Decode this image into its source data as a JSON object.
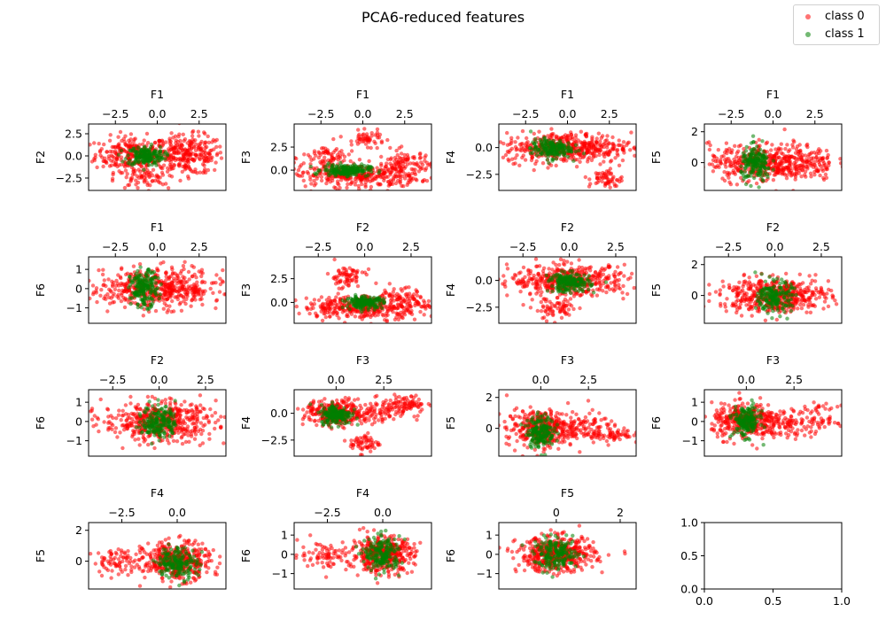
{
  "figure": {
    "title": "PCA6-reduced features",
    "legend": [
      {
        "label": "class 0",
        "color": "#ff0000"
      },
      {
        "label": "class 1",
        "color": "#008000"
      }
    ]
  },
  "chart_data": [
    {
      "type": "scatter",
      "title": "",
      "xlabel": "F1",
      "ylabel": "F2",
      "xticks": [
        -2.5,
        0.0,
        2.5
      ],
      "yticks": [
        -2.5,
        0.0,
        2.5
      ],
      "xlim": [
        -4.1,
        4.1
      ],
      "ylim": [
        -3.9,
        3.6
      ],
      "series": [
        {
          "name": "class 0",
          "color": "#ff0000",
          "clusters": [
            {
              "cx": -1.5,
              "cy": 0.2,
              "sx": 1.1,
              "sy": 1.0,
              "n": 260
            },
            {
              "cx": 1.8,
              "cy": 0.1,
              "sx": 1.1,
              "sy": 1.1,
              "n": 280
            },
            {
              "cx": -1.0,
              "cy": -2.6,
              "sx": 0.8,
              "sy": 0.6,
              "n": 60
            }
          ]
        },
        {
          "name": "class 1",
          "color": "#008000",
          "clusters": [
            {
              "cx": -0.7,
              "cy": 0.0,
              "sx": 0.55,
              "sy": 0.55,
              "n": 180
            }
          ]
        }
      ]
    },
    {
      "type": "scatter",
      "title": "",
      "xlabel": "F1",
      "ylabel": "F3",
      "xticks": [
        -2.5,
        0.0,
        2.5
      ],
      "yticks": [
        0.0,
        2.5
      ],
      "xlim": [
        -4.1,
        4.1
      ],
      "ylim": [
        -2.2,
        5.0
      ],
      "series": [
        {
          "name": "class 0",
          "color": "#ff0000",
          "clusters": [
            {
              "cx": -0.5,
              "cy": -0.6,
              "sx": 1.9,
              "sy": 0.6,
              "n": 320
            },
            {
              "cx": 2.5,
              "cy": 0.4,
              "sx": 0.8,
              "sy": 0.9,
              "n": 120
            },
            {
              "cx": 0.3,
              "cy": 3.4,
              "sx": 0.5,
              "sy": 0.4,
              "n": 50
            },
            {
              "cx": -2.0,
              "cy": 1.3,
              "sx": 0.8,
              "sy": 0.8,
              "n": 80
            }
          ]
        },
        {
          "name": "class 1",
          "color": "#008000",
          "clusters": [
            {
              "cx": -1.0,
              "cy": 0.0,
              "sx": 0.7,
              "sy": 0.3,
              "n": 180
            }
          ]
        }
      ]
    },
    {
      "type": "scatter",
      "title": "",
      "xlabel": "F1",
      "ylabel": "F4",
      "xticks": [
        -2.5,
        0.0,
        2.5
      ],
      "yticks": [
        -2.5,
        0.0
      ],
      "xlim": [
        -4.1,
        4.1
      ],
      "ylim": [
        -4.0,
        2.2
      ],
      "series": [
        {
          "name": "class 0",
          "color": "#ff0000",
          "clusters": [
            {
              "cx": 0.0,
              "cy": 0.0,
              "sx": 1.9,
              "sy": 0.7,
              "n": 480
            },
            {
              "cx": 2.3,
              "cy": -2.9,
              "sx": 0.5,
              "sy": 0.45,
              "n": 60
            }
          ]
        },
        {
          "name": "class 1",
          "color": "#008000",
          "clusters": [
            {
              "cx": -1.0,
              "cy": -0.1,
              "sx": 0.6,
              "sy": 0.45,
              "n": 180
            }
          ]
        }
      ]
    },
    {
      "type": "scatter",
      "title": "",
      "xlabel": "F1",
      "ylabel": "F5",
      "xticks": [
        -2.5,
        0.0,
        2.5
      ],
      "yticks": [
        0,
        2
      ],
      "xlim": [
        -4.1,
        4.1
      ],
      "ylim": [
        -1.8,
        2.5
      ],
      "series": [
        {
          "name": "class 0",
          "color": "#ff0000",
          "clusters": [
            {
              "cx": 0.0,
              "cy": 0.0,
              "sx": 1.9,
              "sy": 0.6,
              "n": 520
            }
          ]
        },
        {
          "name": "class 1",
          "color": "#008000",
          "clusters": [
            {
              "cx": -1.0,
              "cy": -0.1,
              "sx": 0.45,
              "sy": 0.55,
              "n": 180
            }
          ]
        }
      ]
    },
    {
      "type": "scatter",
      "title": "",
      "xlabel": "F1",
      "ylabel": "F6",
      "xticks": [
        -2.5,
        0.0,
        2.5
      ],
      "yticks": [
        -1,
        0,
        1
      ],
      "xlim": [
        -4.1,
        4.1
      ],
      "ylim": [
        -1.8,
        1.65
      ],
      "series": [
        {
          "name": "class 0",
          "color": "#ff0000",
          "clusters": [
            {
              "cx": 0.0,
              "cy": 0.0,
              "sx": 2.0,
              "sy": 0.5,
              "n": 520
            }
          ]
        },
        {
          "name": "class 1",
          "color": "#008000",
          "clusters": [
            {
              "cx": -0.8,
              "cy": 0.0,
              "sx": 0.4,
              "sy": 0.45,
              "n": 180
            }
          ]
        }
      ]
    },
    {
      "type": "scatter",
      "title": "",
      "xlabel": "F2",
      "ylabel": "F3",
      "xticks": [
        -2.5,
        0.0,
        2.5
      ],
      "yticks": [
        0.0,
        2.5
      ],
      "xlim": [
        -3.8,
        3.6
      ],
      "ylim": [
        -2.2,
        4.8
      ],
      "series": [
        {
          "name": "class 0",
          "color": "#ff0000",
          "clusters": [
            {
              "cx": 0.0,
              "cy": -0.5,
              "sx": 1.7,
              "sy": 0.6,
              "n": 360
            },
            {
              "cx": -1.0,
              "cy": 2.7,
              "sx": 0.5,
              "sy": 0.6,
              "n": 70
            },
            {
              "cx": 1.8,
              "cy": 0.3,
              "sx": 0.8,
              "sy": 0.6,
              "n": 80
            }
          ]
        },
        {
          "name": "class 1",
          "color": "#008000",
          "clusters": [
            {
              "cx": 0.0,
              "cy": 0.0,
              "sx": 0.5,
              "sy": 0.3,
              "n": 180
            }
          ]
        }
      ]
    },
    {
      "type": "scatter",
      "title": "",
      "xlabel": "F2",
      "ylabel": "F4",
      "xticks": [
        -2.5,
        0.0,
        2.5
      ],
      "yticks": [
        -2.5,
        0.0
      ],
      "xlim": [
        -3.8,
        3.6
      ],
      "ylim": [
        -4.0,
        2.2
      ],
      "series": [
        {
          "name": "class 0",
          "color": "#ff0000",
          "clusters": [
            {
              "cx": 0.0,
              "cy": 0.0,
              "sx": 1.6,
              "sy": 0.7,
              "n": 460
            },
            {
              "cx": -0.7,
              "cy": -2.7,
              "sx": 0.6,
              "sy": 0.55,
              "n": 70
            }
          ]
        },
        {
          "name": "class 1",
          "color": "#008000",
          "clusters": [
            {
              "cx": 0.0,
              "cy": -0.2,
              "sx": 0.55,
              "sy": 0.45,
              "n": 180
            }
          ]
        }
      ]
    },
    {
      "type": "scatter",
      "title": "",
      "xlabel": "F2",
      "ylabel": "F5",
      "xticks": [
        -2.5,
        0.0,
        2.5
      ],
      "yticks": [
        0,
        2
      ],
      "xlim": [
        -3.8,
        3.6
      ],
      "ylim": [
        -1.8,
        2.5
      ],
      "series": [
        {
          "name": "class 0",
          "color": "#ff0000",
          "clusters": [
            {
              "cx": 0.0,
              "cy": 0.0,
              "sx": 1.5,
              "sy": 0.55,
              "n": 500
            }
          ]
        },
        {
          "name": "class 1",
          "color": "#008000",
          "clusters": [
            {
              "cx": 0.0,
              "cy": -0.1,
              "sx": 0.45,
              "sy": 0.5,
              "n": 180
            }
          ]
        }
      ]
    },
    {
      "type": "scatter",
      "title": "",
      "xlabel": "F2",
      "ylabel": "F6",
      "xticks": [
        -2.5,
        0.0,
        2.5
      ],
      "yticks": [
        -1,
        0,
        1
      ],
      "xlim": [
        -3.8,
        3.6
      ],
      "ylim": [
        -1.8,
        1.65
      ],
      "series": [
        {
          "name": "class 0",
          "color": "#ff0000",
          "clusters": [
            {
              "cx": 0.0,
              "cy": 0.0,
              "sx": 1.5,
              "sy": 0.5,
              "n": 500
            }
          ]
        },
        {
          "name": "class 1",
          "color": "#008000",
          "clusters": [
            {
              "cx": 0.0,
              "cy": 0.0,
              "sx": 0.45,
              "sy": 0.45,
              "n": 180
            }
          ]
        }
      ]
    },
    {
      "type": "scatter",
      "title": "",
      "xlabel": "F3",
      "ylabel": "F4",
      "xticks": [
        0.0,
        2.5
      ],
      "yticks": [
        -2.5,
        0.0
      ],
      "xlim": [
        -2.2,
        5.0
      ],
      "ylim": [
        -4.0,
        2.2
      ],
      "series": [
        {
          "name": "class 0",
          "color": "#ff0000",
          "clusters": [
            {
              "cx": 0.0,
              "cy": 0.0,
              "sx": 0.8,
              "sy": 0.6,
              "n": 300
            },
            {
              "cx": 2.0,
              "cy": -0.1,
              "sx": 0.8,
              "sy": 0.5,
              "n": 90
            },
            {
              "cx": 3.6,
              "cy": 0.9,
              "sx": 0.6,
              "sy": 0.4,
              "n": 80
            },
            {
              "cx": 1.5,
              "cy": -2.8,
              "sx": 0.4,
              "sy": 0.45,
              "n": 60
            }
          ]
        },
        {
          "name": "class 1",
          "color": "#008000",
          "clusters": [
            {
              "cx": 0.0,
              "cy": -0.1,
              "sx": 0.4,
              "sy": 0.45,
              "n": 180
            }
          ]
        }
      ]
    },
    {
      "type": "scatter",
      "title": "",
      "xlabel": "F3",
      "ylabel": "F5",
      "xticks": [
        0.0,
        2.5
      ],
      "yticks": [
        0,
        2
      ],
      "xlim": [
        -2.2,
        5.0
      ],
      "ylim": [
        -1.8,
        2.5
      ],
      "series": [
        {
          "name": "class 0",
          "color": "#ff0000",
          "clusters": [
            {
              "cx": 0.0,
              "cy": 0.0,
              "sx": 0.9,
              "sy": 0.6,
              "n": 360
            },
            {
              "cx": 2.2,
              "cy": 0.0,
              "sx": 0.8,
              "sy": 0.5,
              "n": 90
            },
            {
              "cx": 3.8,
              "cy": -0.3,
              "sx": 0.5,
              "sy": 0.35,
              "n": 60
            }
          ]
        },
        {
          "name": "class 1",
          "color": "#008000",
          "clusters": [
            {
              "cx": 0.0,
              "cy": -0.2,
              "sx": 0.35,
              "sy": 0.5,
              "n": 180
            }
          ]
        }
      ]
    },
    {
      "type": "scatter",
      "title": "",
      "xlabel": "F3",
      "ylabel": "F6",
      "xticks": [
        0.0,
        2.5
      ],
      "yticks": [
        -1,
        0,
        1
      ],
      "xlim": [
        -2.2,
        5.0
      ],
      "ylim": [
        -1.8,
        1.65
      ],
      "series": [
        {
          "name": "class 0",
          "color": "#ff0000",
          "clusters": [
            {
              "cx": 0.0,
              "cy": 0.0,
              "sx": 0.9,
              "sy": 0.45,
              "n": 360
            },
            {
              "cx": 2.0,
              "cy": 0.0,
              "sx": 0.8,
              "sy": 0.4,
              "n": 90
            },
            {
              "cx": 3.8,
              "cy": 0.1,
              "sx": 0.5,
              "sy": 0.35,
              "n": 60
            }
          ]
        },
        {
          "name": "class 1",
          "color": "#008000",
          "clusters": [
            {
              "cx": 0.0,
              "cy": 0.0,
              "sx": 0.35,
              "sy": 0.4,
              "n": 180
            }
          ]
        }
      ]
    },
    {
      "type": "scatter",
      "title": "",
      "xlabel": "F4",
      "ylabel": "F5",
      "xticks": [
        -2.5,
        0.0
      ],
      "yticks": [
        0,
        2
      ],
      "xlim": [
        -4.0,
        2.2
      ],
      "ylim": [
        -1.8,
        2.5
      ],
      "series": [
        {
          "name": "class 0",
          "color": "#ff0000",
          "clusters": [
            {
              "cx": 0.0,
              "cy": 0.0,
              "sx": 0.75,
              "sy": 0.6,
              "n": 420
            },
            {
              "cx": -2.6,
              "cy": 0.0,
              "sx": 0.6,
              "sy": 0.4,
              "n": 80
            }
          ]
        },
        {
          "name": "class 1",
          "color": "#008000",
          "clusters": [
            {
              "cx": 0.0,
              "cy": -0.1,
              "sx": 0.45,
              "sy": 0.5,
              "n": 180
            }
          ]
        }
      ]
    },
    {
      "type": "scatter",
      "title": "",
      "xlabel": "F4",
      "ylabel": "F6",
      "xticks": [
        -2.5,
        0.0
      ],
      "yticks": [
        -1,
        0,
        1
      ],
      "xlim": [
        -4.0,
        2.2
      ],
      "ylim": [
        -1.8,
        1.65
      ],
      "series": [
        {
          "name": "class 0",
          "color": "#ff0000",
          "clusters": [
            {
              "cx": 0.0,
              "cy": 0.0,
              "sx": 0.7,
              "sy": 0.45,
              "n": 420
            },
            {
              "cx": -2.6,
              "cy": 0.0,
              "sx": 0.6,
              "sy": 0.35,
              "n": 80
            }
          ]
        },
        {
          "name": "class 1",
          "color": "#008000",
          "clusters": [
            {
              "cx": 0.0,
              "cy": 0.0,
              "sx": 0.4,
              "sy": 0.45,
              "n": 180
            }
          ]
        }
      ]
    },
    {
      "type": "scatter",
      "title": "",
      "xlabel": "F5",
      "ylabel": "F6",
      "xticks": [
        0,
        2
      ],
      "yticks": [
        -1,
        0,
        1
      ],
      "xlim": [
        -1.8,
        2.5
      ],
      "ylim": [
        -1.8,
        1.65
      ],
      "series": [
        {
          "name": "class 0",
          "color": "#ff0000",
          "clusters": [
            {
              "cx": 0.0,
              "cy": 0.0,
              "sx": 0.6,
              "sy": 0.45,
              "n": 480
            }
          ]
        },
        {
          "name": "class 1",
          "color": "#008000",
          "clusters": [
            {
              "cx": 0.0,
              "cy": 0.0,
              "sx": 0.35,
              "sy": 0.4,
              "n": 180
            }
          ]
        }
      ]
    },
    {
      "type": "scatter",
      "title": "",
      "xlabel": "",
      "ylabel": "",
      "xticks": [
        0.0,
        0.5,
        1.0
      ],
      "yticks": [
        0.0,
        0.5,
        1.0
      ],
      "xlim": [
        0.0,
        1.0
      ],
      "ylim": [
        0.0,
        1.0
      ],
      "xtick_position": "bottom",
      "series": []
    }
  ]
}
